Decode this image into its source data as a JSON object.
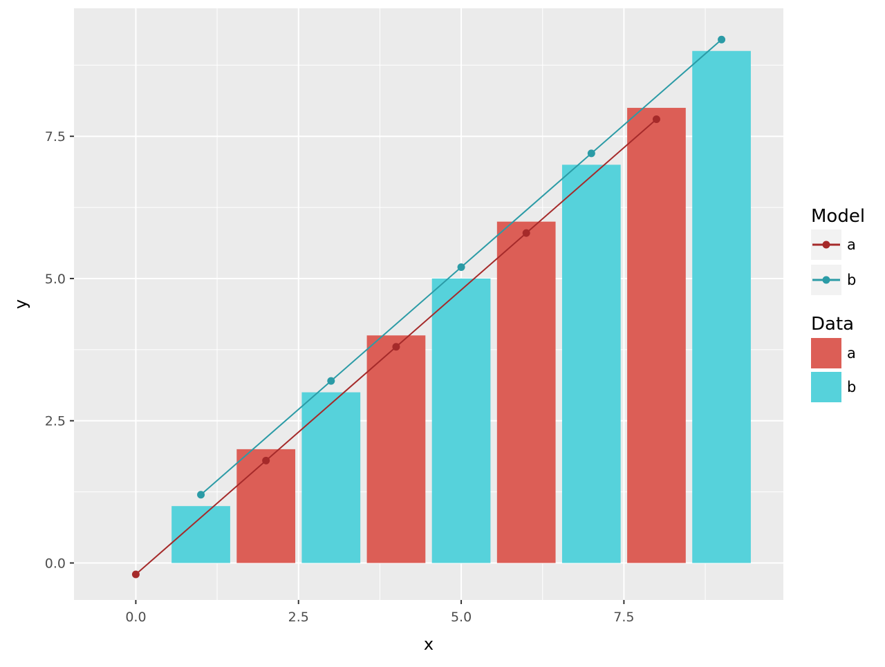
{
  "chart_data": {
    "type": "bar",
    "title": "",
    "xlabel": "x",
    "ylabel": "y",
    "xlim": [
      -0.95,
      9.95
    ],
    "ylim": [
      -0.65,
      9.75
    ],
    "x_ticks": [
      {
        "value": 0.0,
        "label": "0.0"
      },
      {
        "value": 2.5,
        "label": "2.5"
      },
      {
        "value": 5.0,
        "label": "5.0"
      },
      {
        "value": 7.5,
        "label": "7.5"
      }
    ],
    "y_ticks": [
      {
        "value": 0.0,
        "label": "0.0"
      },
      {
        "value": 2.5,
        "label": "2.5"
      },
      {
        "value": 5.0,
        "label": "5.0"
      },
      {
        "value": 7.5,
        "label": "7.5"
      }
    ],
    "grid": true,
    "bars": {
      "legend_title": "Data",
      "width": 0.9,
      "series": [
        {
          "name": "a",
          "color": "#dc5e56",
          "points": [
            {
              "x": 2,
              "y": 2
            },
            {
              "x": 4,
              "y": 4
            },
            {
              "x": 6,
              "y": 6
            },
            {
              "x": 8,
              "y": 8
            }
          ]
        },
        {
          "name": "b",
          "color": "#56d2db",
          "points": [
            {
              "x": 1,
              "y": 1
            },
            {
              "x": 3,
              "y": 3
            },
            {
              "x": 5,
              "y": 5
            },
            {
              "x": 7,
              "y": 7
            },
            {
              "x": 9,
              "y": 9
            }
          ]
        }
      ]
    },
    "lines": {
      "legend_title": "Model",
      "series": [
        {
          "name": "a",
          "color": "#a52a2a",
          "points": [
            {
              "x": 0,
              "y": -0.2
            },
            {
              "x": 2,
              "y": 1.8
            },
            {
              "x": 4,
              "y": 3.8
            },
            {
              "x": 6,
              "y": 5.8
            },
            {
              "x": 8,
              "y": 7.8
            }
          ]
        },
        {
          "name": "b",
          "color": "#2b9ba6",
          "points": [
            {
              "x": 1,
              "y": 1.2
            },
            {
              "x": 3,
              "y": 3.2
            },
            {
              "x": 5,
              "y": 5.2
            },
            {
              "x": 7,
              "y": 7.2
            },
            {
              "x": 9,
              "y": 9.2
            }
          ]
        }
      ]
    },
    "legend_position": "right"
  }
}
